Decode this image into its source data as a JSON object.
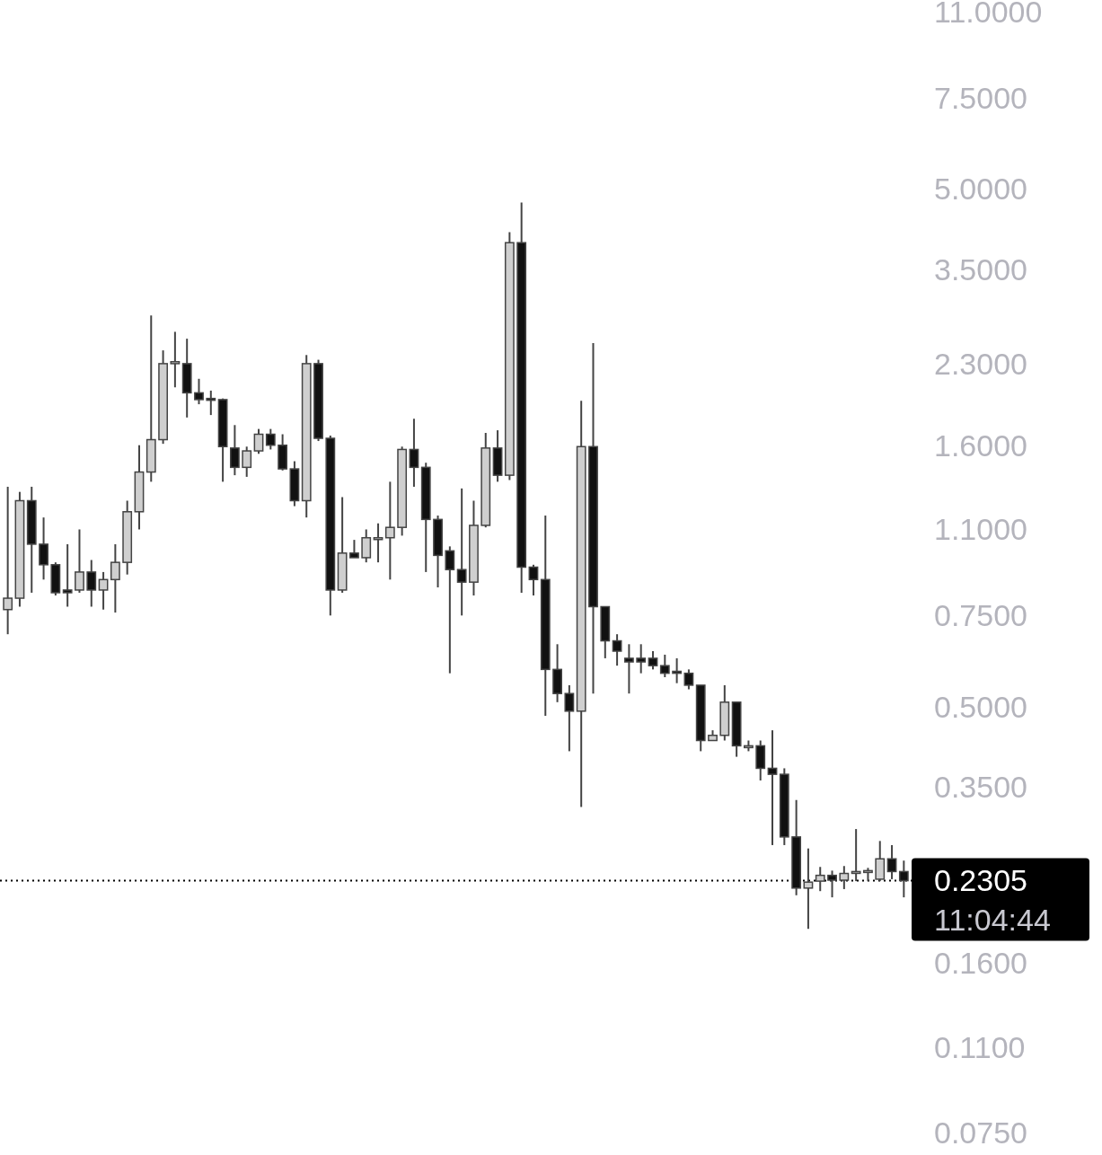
{
  "chart_data": {
    "type": "candlestick",
    "log": true,
    "grid": false,
    "tick_labels": "y",
    "categories": [
      null,
      null,
      null,
      null,
      null,
      null,
      null,
      null,
      null,
      null,
      null,
      null,
      null,
      null,
      null,
      null,
      null,
      null,
      null,
      null,
      null,
      null,
      null,
      null,
      null,
      null,
      null,
      null,
      null,
      null,
      null,
      null,
      null,
      null,
      null,
      null,
      null,
      null,
      null,
      null,
      null,
      null,
      null,
      null,
      null,
      null,
      null,
      null,
      null,
      null,
      null,
      null,
      null,
      null,
      null,
      null,
      null,
      null,
      null,
      null,
      null,
      null,
      null,
      null,
      null,
      null,
      null,
      null,
      null,
      null,
      null,
      null,
      null,
      null,
      null,
      null
    ],
    "ohlc": [
      [
        0.77,
        1.33,
        0.69,
        0.81
      ],
      [
        0.81,
        1.3,
        0.78,
        1.25
      ],
      [
        1.25,
        1.33,
        0.83,
        1.03
      ],
      [
        1.03,
        1.16,
        0.88,
        0.94
      ],
      [
        0.94,
        0.95,
        0.82,
        0.83
      ],
      [
        0.84,
        1.03,
        0.78,
        0.83
      ],
      [
        0.84,
        1.1,
        0.83,
        0.91
      ],
      [
        0.91,
        0.96,
        0.78,
        0.84
      ],
      [
        0.84,
        0.91,
        0.77,
        0.88
      ],
      [
        0.88,
        1.03,
        0.76,
        0.95
      ],
      [
        0.95,
        1.25,
        0.9,
        1.19
      ],
      [
        1.19,
        1.6,
        1.1,
        1.42
      ],
      [
        1.42,
        2.85,
        1.36,
        1.64
      ],
      [
        1.64,
        2.44,
        1.61,
        2.3
      ],
      [
        2.3,
        2.65,
        2.07,
        2.32
      ],
      [
        2.3,
        2.57,
        1.81,
        2.02
      ],
      [
        2.02,
        2.15,
        1.92,
        1.96
      ],
      [
        1.97,
        2.04,
        1.83,
        1.96
      ],
      [
        1.96,
        1.97,
        1.36,
        1.59
      ],
      [
        1.58,
        1.75,
        1.4,
        1.45
      ],
      [
        1.45,
        1.59,
        1.39,
        1.56
      ],
      [
        1.56,
        1.72,
        1.54,
        1.68
      ],
      [
        1.68,
        1.72,
        1.57,
        1.6
      ],
      [
        1.6,
        1.68,
        1.43,
        1.44
      ],
      [
        1.44,
        1.49,
        1.22,
        1.25
      ],
      [
        1.25,
        2.39,
        1.16,
        2.3
      ],
      [
        2.3,
        2.34,
        1.63,
        1.65
      ],
      [
        1.65,
        1.67,
        0.75,
        0.84
      ],
      [
        0.84,
        1.27,
        0.83,
        0.99
      ],
      [
        0.99,
        1.05,
        0.97,
        0.97
      ],
      [
        0.97,
        1.1,
        0.95,
        1.06
      ],
      [
        1.06,
        1.13,
        0.95,
        1.06
      ],
      [
        1.06,
        1.36,
        0.88,
        1.11
      ],
      [
        1.11,
        1.59,
        1.07,
        1.57
      ],
      [
        1.57,
        1.8,
        1.33,
        1.45
      ],
      [
        1.45,
        1.48,
        0.91,
        1.15
      ],
      [
        1.15,
        1.17,
        0.85,
        0.98
      ],
      [
        1.0,
        1.02,
        0.58,
        0.92
      ],
      [
        0.92,
        1.32,
        0.75,
        0.87
      ],
      [
        0.87,
        1.25,
        0.82,
        1.12
      ],
      [
        1.12,
        1.69,
        1.11,
        1.58
      ],
      [
        1.58,
        1.71,
        1.36,
        1.4
      ],
      [
        1.4,
        4.13,
        1.37,
        3.94
      ],
      [
        3.94,
        4.71,
        0.83,
        0.93
      ],
      [
        0.93,
        0.94,
        0.82,
        0.88
      ],
      [
        0.88,
        1.17,
        0.48,
        0.59
      ],
      [
        0.59,
        0.66,
        0.51,
        0.53
      ],
      [
        0.53,
        0.55,
        0.41,
        0.49
      ],
      [
        0.49,
        1.95,
        0.32,
        1.59
      ],
      [
        1.59,
        2.52,
        0.53,
        0.78
      ],
      [
        0.78,
        0.78,
        0.62,
        0.67
      ],
      [
        0.67,
        0.69,
        0.6,
        0.64
      ],
      [
        0.62,
        0.66,
        0.53,
        0.61
      ],
      [
        0.62,
        0.66,
        0.58,
        0.61
      ],
      [
        0.62,
        0.64,
        0.59,
        0.6
      ],
      [
        0.6,
        0.63,
        0.57,
        0.58
      ],
      [
        0.585,
        0.62,
        0.555,
        0.58
      ],
      [
        0.58,
        0.59,
        0.54,
        0.55
      ],
      [
        0.55,
        0.55,
        0.41,
        0.43
      ],
      [
        0.43,
        0.45,
        0.43,
        0.44
      ],
      [
        0.44,
        0.55,
        0.43,
        0.51
      ],
      [
        0.51,
        0.51,
        0.4,
        0.42
      ],
      [
        0.42,
        0.43,
        0.41,
        0.42
      ],
      [
        0.42,
        0.43,
        0.36,
        0.38
      ],
      [
        0.38,
        0.45,
        0.27,
        0.37
      ],
      [
        0.37,
        0.38,
        0.27,
        0.28
      ],
      [
        0.28,
        0.33,
        0.216,
        0.223
      ],
      [
        0.223,
        0.266,
        0.186,
        0.229
      ],
      [
        0.23,
        0.245,
        0.22,
        0.236
      ],
      [
        0.236,
        0.241,
        0.214,
        0.231
      ],
      [
        0.231,
        0.246,
        0.222,
        0.238
      ],
      [
        0.24,
        0.29,
        0.23,
        0.24
      ],
      [
        0.24,
        0.244,
        0.23,
        0.241
      ],
      [
        0.232,
        0.275,
        0.23,
        0.254
      ],
      [
        0.254,
        0.27,
        0.232,
        0.24
      ],
      [
        0.24,
        0.252,
        0.214,
        0.2305
      ]
    ],
    "ylim": [
      0.068,
      11.6
    ],
    "yticks": [
      {
        "value": 11,
        "label": "11.0000"
      },
      {
        "value": 7.5,
        "label": "7.5000"
      },
      {
        "value": 5,
        "label": "5.0000"
      },
      {
        "value": 3.5,
        "label": "3.5000"
      },
      {
        "value": 2.3,
        "label": "2.3000"
      },
      {
        "value": 1.6,
        "label": "1.6000"
      },
      {
        "value": 1.1,
        "label": "1.1000"
      },
      {
        "value": 0.75,
        "label": "0.7500"
      },
      {
        "value": 0.5,
        "label": "0.5000"
      },
      {
        "value": 0.35,
        "label": "0.3500"
      },
      {
        "value": 0.16,
        "label": "0.1600"
      },
      {
        "value": 0.11,
        "label": "0.1100"
      },
      {
        "value": 0.075,
        "label": "0.0750"
      }
    ],
    "ref_lines": [
      {
        "axis": "y",
        "value": 0.2305,
        "label": "0.2305",
        "line_style": "dotted",
        "color": "#000000"
      }
    ],
    "annotations": [
      "11:04:44"
    ]
  }
}
